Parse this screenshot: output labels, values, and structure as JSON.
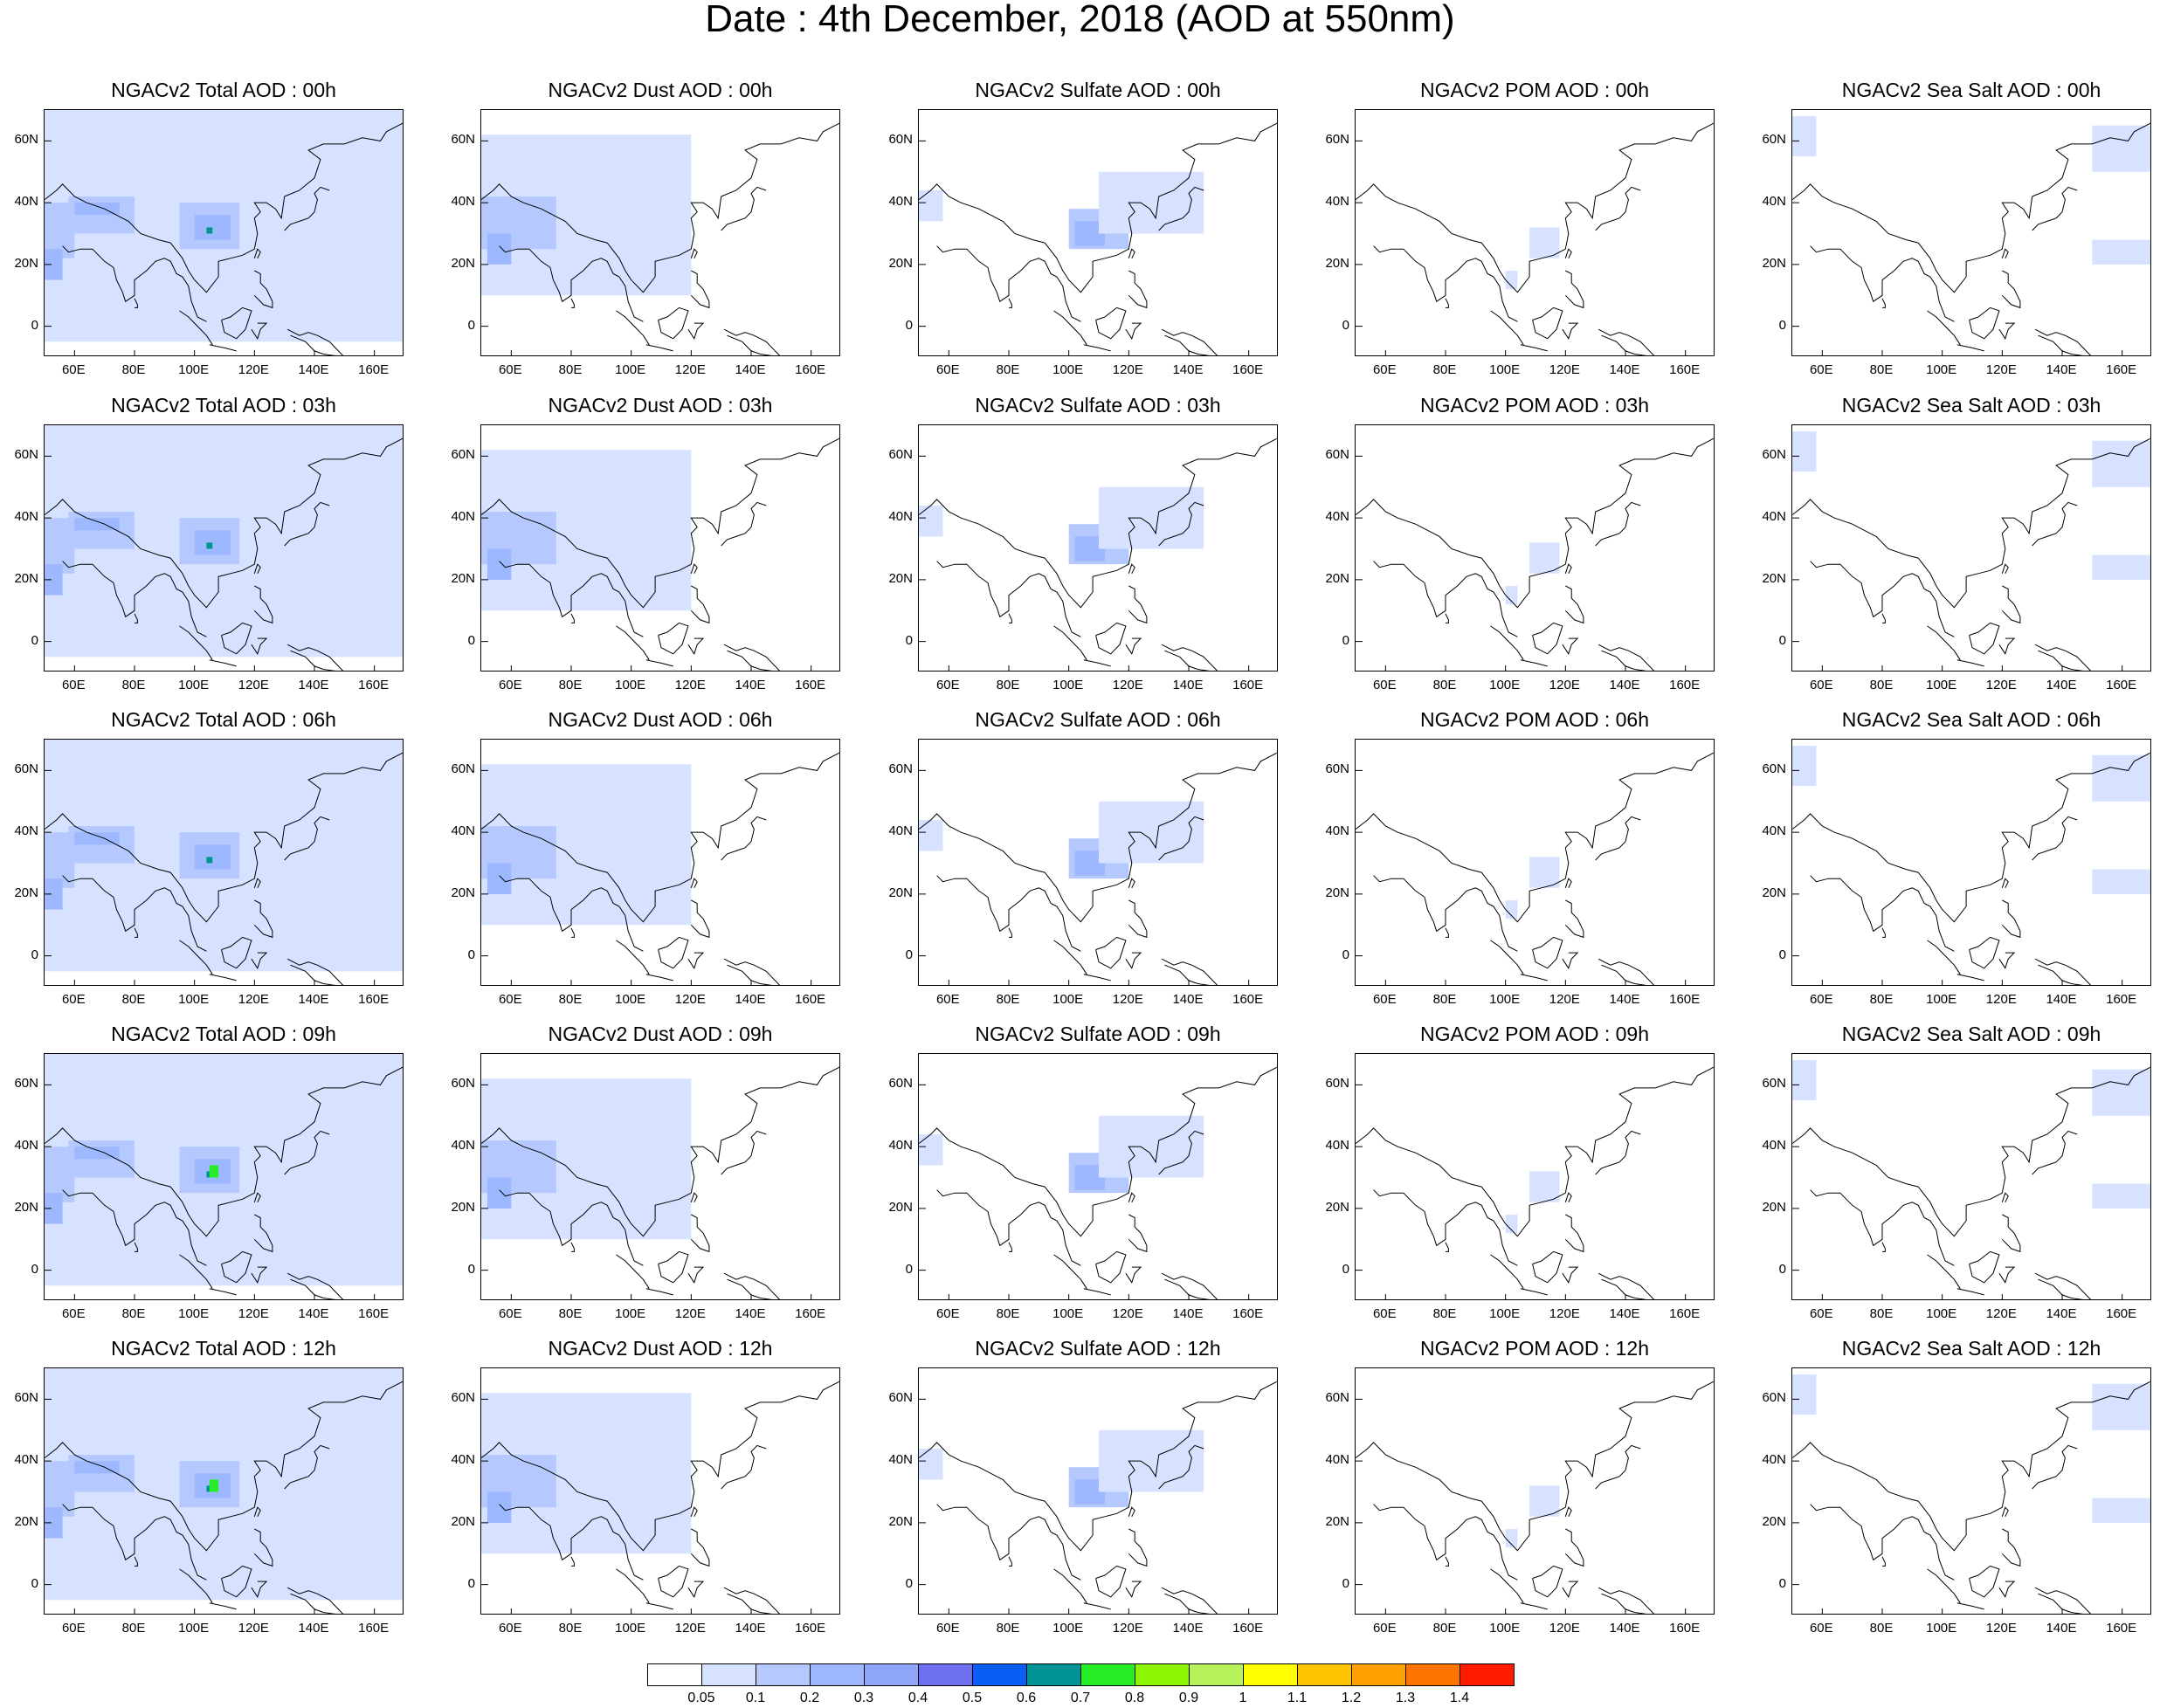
{
  "title": "Date : 4th December, 2018 (AOD at 550nm)",
  "lat_labels": [
    "60N",
    "40N",
    "20N",
    "0"
  ],
  "lat_values": [
    60,
    40,
    20,
    0
  ],
  "lon_labels": [
    "60E",
    "80E",
    "100E",
    "120E",
    "140E",
    "160E"
  ],
  "lon_values": [
    60,
    80,
    100,
    120,
    140,
    160
  ],
  "map_extent": {
    "lon": [
      50,
      170
    ],
    "lat": [
      -10,
      70
    ]
  },
  "columns": [
    "Total",
    "Dust",
    "Sulfate",
    "POM",
    "Sea Salt"
  ],
  "panels": [
    [
      {
        "title": "NGACv2 Total AOD : 00h"
      },
      {
        "title": "NGACv2 Dust AOD : 00h"
      },
      {
        "title": "NGACv2 Sulfate AOD : 00h"
      },
      {
        "title": "NGACv2 POM AOD : 00h"
      },
      {
        "title": "NGACv2 Sea Salt AOD : 00h"
      }
    ],
    [
      {
        "title": "NGACv2 Total AOD : 03h"
      },
      {
        "title": "NGACv2 Dust AOD : 03h"
      },
      {
        "title": "NGACv2 Sulfate AOD : 03h"
      },
      {
        "title": "NGACv2 POM AOD : 03h"
      },
      {
        "title": "NGACv2 Sea Salt AOD : 03h"
      }
    ],
    [
      {
        "title": "NGACv2 Total AOD : 06h"
      },
      {
        "title": "NGACv2 Dust AOD : 06h"
      },
      {
        "title": "NGACv2 Sulfate AOD : 06h"
      },
      {
        "title": "NGACv2 POM AOD : 06h"
      },
      {
        "title": "NGACv2 Sea Salt AOD : 06h"
      }
    ],
    [
      {
        "title": "NGACv2 Total AOD : 09h"
      },
      {
        "title": "NGACv2 Dust AOD : 09h"
      },
      {
        "title": "NGACv2 Sulfate AOD : 09h"
      },
      {
        "title": "NGACv2 POM AOD : 09h"
      },
      {
        "title": "NGACv2 Sea Salt  AOD : 09h"
      }
    ],
    [
      {
        "title": "NGACv2 Total AOD  : 12h"
      },
      {
        "title": "NGACv2 Dust AOD : 12h"
      },
      {
        "title": "NGACv2 Sulfate AOD : 12h"
      },
      {
        "title": "NGACv2 POM  AOD : 12h"
      },
      {
        "title": "NGACv2 Sea Salt  AOD : 12h"
      }
    ]
  ],
  "colorbar": {
    "colors": [
      "#ffffff",
      "#d6e2ff",
      "#b5c9ff",
      "#9eb8ff",
      "#8ea5fa",
      "#6e6ef0",
      "#0a5ef5",
      "#009494",
      "#27ed27",
      "#8cf500",
      "#b8f25a",
      "#ffff00",
      "#ffc400",
      "#ffa000",
      "#ff7300",
      "#ff1a00"
    ],
    "labels": [
      "0.05",
      "0.1",
      "0.2",
      "0.3",
      "0.4",
      "0.5",
      "0.6",
      "0.7",
      "0.8",
      "0.9",
      "1",
      "1.1",
      "1.2",
      "1.3",
      "1.4"
    ]
  }
}
